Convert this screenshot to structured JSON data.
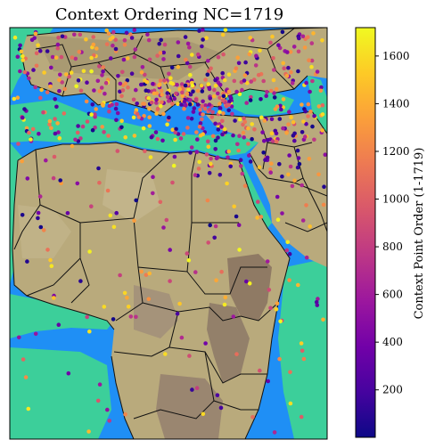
{
  "title": "Context Ordering NC=1719",
  "colorbar": {
    "label": "Context Point Order (1-1719)",
    "ticks": [
      200,
      400,
      600,
      800,
      1000,
      1200,
      1400,
      1600
    ],
    "min": 1,
    "max": 1719,
    "colormap": [
      "#0d0887",
      "#46039f",
      "#7201a8",
      "#9c179e",
      "#bd3786",
      "#d8576b",
      "#ed7953",
      "#fb9f3a",
      "#fdca26",
      "#f0f921"
    ]
  },
  "colors": {
    "sea": "#1e90ff",
    "shallow_sea": "#3cd59a",
    "land": "#b8a878",
    "highland": "#8a7560",
    "border": "#111111"
  },
  "context_point_count": 1719
}
